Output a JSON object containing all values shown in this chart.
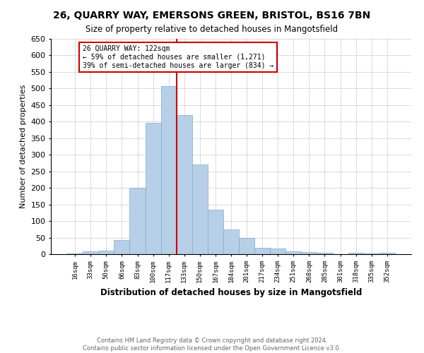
{
  "title1": "26, QUARRY WAY, EMERSONS GREEN, BRISTOL, BS16 7BN",
  "title2": "Size of property relative to detached houses in Mangotsfield",
  "xlabel": "Distribution of detached houses by size in Mangotsfield",
  "ylabel": "Number of detached properties",
  "footer1": "Contains HM Land Registry data © Crown copyright and database right 2024.",
  "footer2": "Contains public sector information licensed under the Open Government Licence v3.0.",
  "bins": [
    16,
    33,
    50,
    66,
    83,
    100,
    117,
    133,
    150,
    167,
    184,
    201,
    217,
    234,
    251,
    268,
    285,
    301,
    318,
    335,
    352
  ],
  "values": [
    3,
    8,
    10,
    43,
    200,
    397,
    507,
    420,
    270,
    135,
    75,
    50,
    20,
    17,
    8,
    6,
    5,
    0,
    5,
    3,
    5
  ],
  "bar_color": "#b8cfe8",
  "bar_edge_color": "#7aaad0",
  "vline_color": "#cc0000",
  "annotation_title": "26 QUARRY WAY: 122sqm",
  "annotation_line1": "← 59% of detached houses are smaller (1,271)",
  "annotation_line2": "39% of semi-detached houses are larger (834) →",
  "annotation_box_color": "#cc0000",
  "ylim": [
    0,
    650
  ],
  "yticks": [
    0,
    50,
    100,
    150,
    200,
    250,
    300,
    350,
    400,
    450,
    500,
    550,
    600,
    650
  ]
}
